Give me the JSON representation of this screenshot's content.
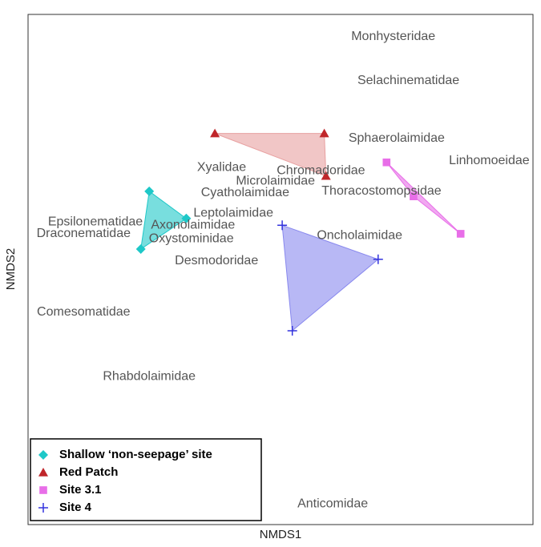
{
  "chart_data": {
    "type": "scatter",
    "xlabel": "NMDS1",
    "ylabel": "NMDS2",
    "xlim": [
      -1.5,
      1.5
    ],
    "ylim": [
      -1.5,
      1.5
    ],
    "legend": "bottom left",
    "series": [
      {
        "name": "Shallow ‘non-seepage’ site",
        "color": "#1ec8c8",
        "marker": "diamond",
        "x": [
          -0.78,
          -0.56,
          -0.83
        ],
        "y": [
          0.46,
          0.3,
          0.12
        ]
      },
      {
        "name": "Red Patch",
        "color": "#c0262a",
        "hull_color": "#e8a0a0",
        "marker": "triangle",
        "x": [
          -0.39,
          0.26,
          0.27
        ],
        "y": [
          0.8,
          0.8,
          0.55
        ]
      },
      {
        "name": "Site 3.1",
        "color": "#e86ee8",
        "marker": "square",
        "x": [
          0.63,
          0.79,
          1.07
        ],
        "y": [
          0.63,
          0.43,
          0.21
        ]
      },
      {
        "name": "Site 4",
        "color": "#3333dd",
        "hull_color": "#8888ee",
        "marker": "plus",
        "x": [
          0.01,
          0.58,
          0.07
        ],
        "y": [
          0.26,
          0.06,
          -0.36
        ]
      }
    ],
    "text_labels": [
      {
        "text": "Monhysteridae",
        "x": 0.67,
        "y": 1.37
      },
      {
        "text": "Selachinematidae",
        "x": 0.76,
        "y": 1.11
      },
      {
        "text": "Sphaerolaimidae",
        "x": 0.69,
        "y": 0.77
      },
      {
        "text": "Linhomoeidae",
        "x": 1.24,
        "y": 0.64
      },
      {
        "text": "Xyalidae",
        "x": -0.35,
        "y": 0.6
      },
      {
        "text": "Chromadoridae",
        "x": 0.24,
        "y": 0.58
      },
      {
        "text": "Microlaimidae",
        "x": -0.03,
        "y": 0.52
      },
      {
        "text": "Thoracostomopsidae",
        "x": 0.6,
        "y": 0.46
      },
      {
        "text": "Cyatholaimidae",
        "x": -0.21,
        "y": 0.45
      },
      {
        "text": "Leptolaimidae",
        "x": -0.28,
        "y": 0.33
      },
      {
        "text": "Epsilonematidae",
        "x": -1.1,
        "y": 0.28
      },
      {
        "text": "Axonolaimidae",
        "x": -0.52,
        "y": 0.26
      },
      {
        "text": "Draconematidae",
        "x": -1.17,
        "y": 0.21
      },
      {
        "text": "Oxystominidae",
        "x": -0.53,
        "y": 0.18
      },
      {
        "text": "Oncholaimidae",
        "x": 0.47,
        "y": 0.2
      },
      {
        "text": "Desmodoridae",
        "x": -0.38,
        "y": 0.05
      },
      {
        "text": "Comesomatidae",
        "x": -1.17,
        "y": -0.25
      },
      {
        "text": "Rhabdolaimidae",
        "x": -0.78,
        "y": -0.63
      },
      {
        "text": "Anticomidae",
        "x": 0.31,
        "y": -1.38
      }
    ]
  }
}
